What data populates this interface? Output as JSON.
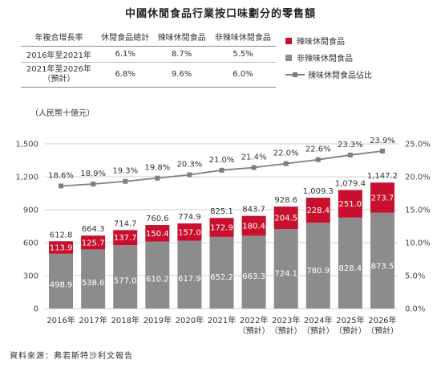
{
  "title": "中國休閒食品行業按口味劃分的零售額",
  "cagr_table": {
    "headers": [
      "年複合增長率",
      "休閒食品總計",
      "辣味休閒食品",
      "非辣味休閒食品"
    ],
    "rows": [
      {
        "period": "2016年至2021年",
        "total": "6.1%",
        "spicy": "8.7%",
        "nonspicy": "5.5%"
      },
      {
        "period_line1": "2021年至2026年",
        "period_line2": "（預計）",
        "total": "6.8%",
        "spicy": "9.6%",
        "nonspicy": "6.0%"
      }
    ]
  },
  "unit_label": "（人民幣十億元）",
  "source": "資料來源：弗若斯特沙利文報告",
  "colors": {
    "spicy": "#c8102e",
    "nonspicy": "#8c8c8c",
    "line": "#7f7f7f"
  },
  "chart_data": {
    "type": "bar",
    "stacked": true,
    "categories": [
      "2016年",
      "2017年",
      "2018年",
      "2019年",
      "2020年",
      "2021年",
      "2022年",
      "2023年",
      "2024年",
      "2025年",
      "2026年"
    ],
    "category_sublabels": [
      "",
      "",
      "",
      "",
      "",
      "",
      "（預計）",
      "（預計）",
      "（預計）",
      "（預計）",
      "（預計）"
    ],
    "series": [
      {
        "name": "非辣味休閒食品",
        "values": [
          498.9,
          538.6,
          577.0,
          610.2,
          617.9,
          652.2,
          663.3,
          724.1,
          780.9,
          828.4,
          873.5
        ]
      },
      {
        "name": "辣味休閒食品",
        "values": [
          113.9,
          125.7,
          137.7,
          150.4,
          157.0,
          172.9,
          180.4,
          204.5,
          228.4,
          251.0,
          273.7
        ]
      }
    ],
    "totals": [
      "612.8",
      "664.3",
      "714.7",
      "760.6",
      "774.9",
      "825.1",
      "843.7",
      "928.6",
      "1,009.3",
      "1,079.4",
      "1,147.2"
    ],
    "spicy_labels": [
      "113.9",
      "125.7",
      "137.7",
      "150.4",
      "157.0",
      "172.9",
      "180.4",
      "204.5",
      "228.4",
      "251.0",
      "273.7"
    ],
    "nonspicy_labels": [
      "498.9",
      "538.6",
      "577.0",
      "610.2",
      "617.9",
      "652.2",
      "663.3",
      "724.1",
      "780.9",
      "828.4",
      "873.5"
    ],
    "line_series": {
      "name": "辣味休閒食品佔比",
      "values": [
        18.6,
        18.9,
        19.3,
        19.8,
        20.3,
        21.0,
        21.4,
        22.0,
        22.6,
        23.3,
        23.9
      ],
      "labels": [
        "18.6%",
        "18.9%",
        "19.3%",
        "19.8%",
        "20.3%",
        "21.0%",
        "21.4%",
        "22.0%",
        "22.6%",
        "23.3%",
        "23.9%"
      ],
      "axis": "right"
    },
    "ylim": [
      0,
      1500
    ],
    "yticks": [
      0,
      300,
      600,
      900,
      1200,
      1500
    ],
    "ytick_labels": [
      "0",
      "300",
      "600",
      "900",
      "1,200",
      "1,500"
    ],
    "y2lim": [
      0,
      25
    ],
    "y2ticks": [
      0,
      5,
      10,
      15,
      20,
      25
    ],
    "y2tick_labels": [
      "0.0%",
      "5.0%",
      "10.0%",
      "15.0%",
      "20.0%",
      "25.0%"
    ],
    "grid": true,
    "legend_position": "top-right"
  }
}
